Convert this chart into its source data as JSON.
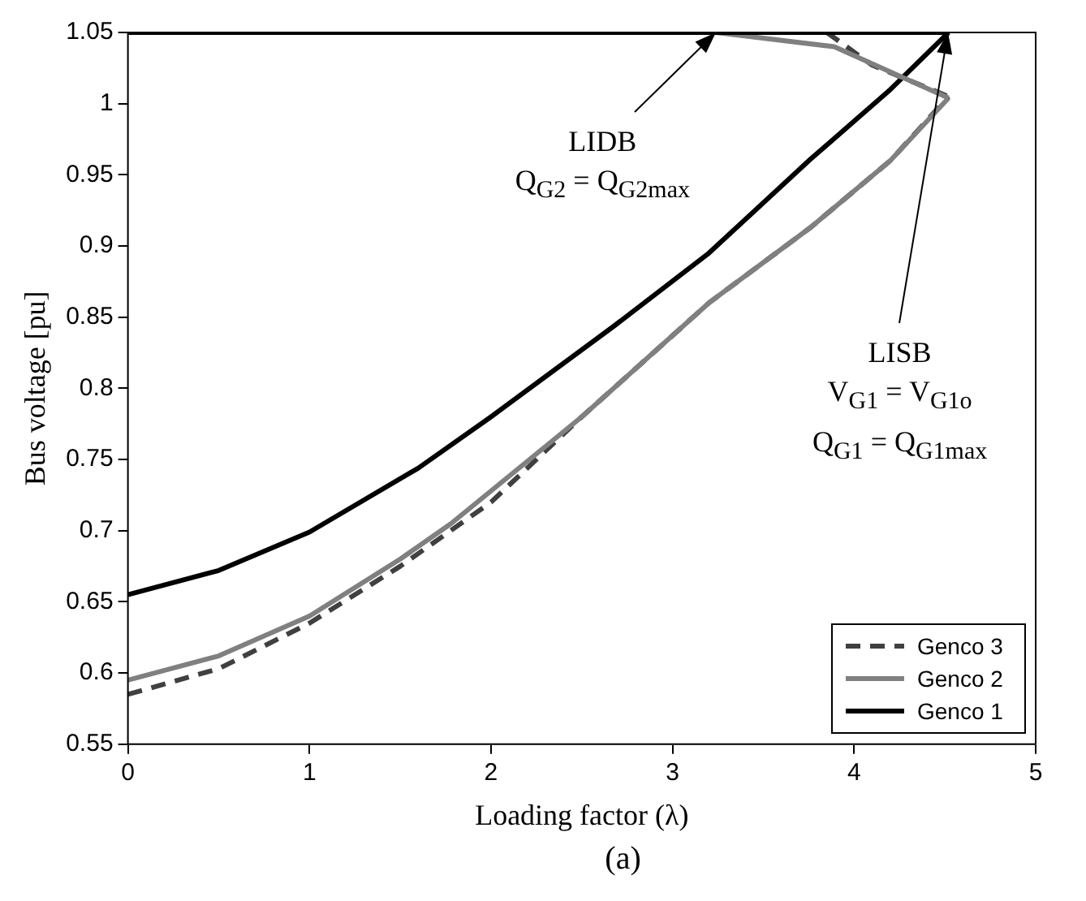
{
  "chart_data": {
    "type": "line",
    "xlabel": "Loading factor (λ)",
    "ylabel": "Bus voltage [pu]",
    "xlim": [
      0,
      5
    ],
    "xticks": [
      0,
      1,
      2,
      3,
      4,
      5
    ],
    "ylim": [
      0.55,
      1.05
    ],
    "yticks": [
      0.55,
      0.6,
      0.65,
      0.7,
      0.75,
      0.8,
      0.85,
      0.9,
      0.95,
      1,
      1.05
    ],
    "grid": false,
    "legend": "bottom right",
    "marker": "none",
    "series": [
      {
        "name": "Genco 3",
        "color": "#404040",
        "line_style": "dashed",
        "x": [
          0,
          0.5,
          1,
          1.5,
          2,
          2.5,
          3.2,
          3.76,
          4.2,
          4.52
        ],
        "values": [
          0.585,
          0.603,
          0.635,
          0.675,
          0.72,
          0.78,
          0.86,
          0.913,
          0.96,
          1.005
        ]
      },
      {
        "name": "Genco 2",
        "color": "#808080",
        "line_style": "solid",
        "x": [
          0,
          0.5,
          1,
          1.5,
          1.78,
          2.5,
          3.2,
          3.76,
          4.2,
          4.52
        ],
        "values": [
          0.595,
          0.612,
          0.64,
          0.68,
          0.705,
          0.78,
          0.86,
          0.913,
          0.96,
          1.004
        ]
      },
      {
        "name": "Genco 1",
        "color": "#000000",
        "line_style": "solid",
        "x": [
          0,
          0.5,
          1,
          1.6,
          2,
          2.68,
          3.2,
          3.76,
          4.2,
          4.52
        ],
        "values": [
          0.655,
          0.672,
          0.699,
          0.744,
          0.78,
          0.844,
          0.895,
          0.961,
          1.01,
          1.05
        ]
      },
      {
        "color": "#404040",
        "line_style": "dashed",
        "x": [
          3.85,
          4.1,
          4.52
        ],
        "values": [
          1.05,
          1.027,
          1.005
        ]
      },
      {
        "color": "#808080",
        "line_style": "solid",
        "x": [
          3.24,
          3.89,
          4.52
        ],
        "values": [
          1.05,
          1.04,
          1.004
        ]
      },
      {
        "color": "#000000",
        "line_style": "solid",
        "x": [
          0,
          4.52
        ],
        "values": [
          1.05,
          1.05
        ]
      }
    ],
    "annotations": [
      "(a)",
      {
        "text": "LIDB\nQ$_{G2}$ = Q$_{G2max}$",
        "x": 3.24,
        "y": 1.05
      },
      {
        "text": "LISB",
        "x": 4.52,
        "y": 1.05
      },
      "V$_{G1}$ = V$_{G1o}$",
      "Q$_{G1}$ = Q$_{G1max}$"
    ]
  }
}
